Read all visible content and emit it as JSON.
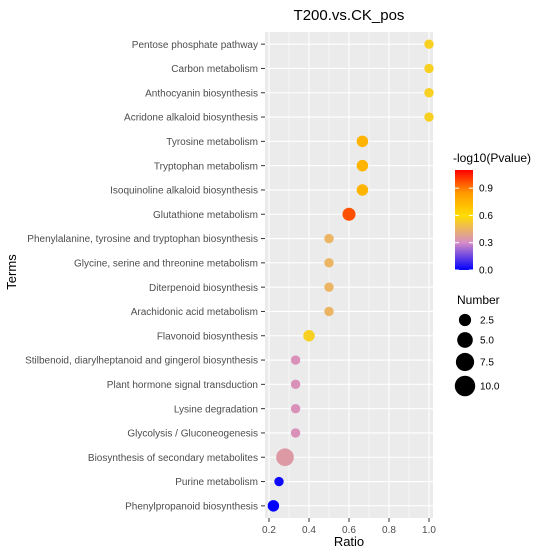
{
  "chart_data": {
    "type": "scatter",
    "title": "T200.vs.CK_pos",
    "xlabel": "Ratio",
    "ylabel": "Terms",
    "xlim": [
      0.18,
      1.02
    ],
    "xticks": [
      "0.2",
      "0.4",
      "0.6",
      "0.8",
      "1.0"
    ],
    "grid": true,
    "terms": [
      {
        "term": "Pentose phosphate pathway",
        "ratio": 1.0,
        "number": 1,
        "pvalue_log": 0.55
      },
      {
        "term": "Carbon metabolism",
        "ratio": 1.0,
        "number": 1,
        "pvalue_log": 0.55
      },
      {
        "term": "Anthocyanin biosynthesis",
        "ratio": 1.0,
        "number": 1,
        "pvalue_log": 0.55
      },
      {
        "term": "Acridone alkaloid biosynthesis",
        "ratio": 1.0,
        "number": 1,
        "pvalue_log": 0.55
      },
      {
        "term": "Tyrosine metabolism",
        "ratio": 0.667,
        "number": 2,
        "pvalue_log": 0.75
      },
      {
        "term": "Tryptophan metabolism",
        "ratio": 0.667,
        "number": 2,
        "pvalue_log": 0.75
      },
      {
        "term": "Isoquinoline alkaloid biosynthesis",
        "ratio": 0.667,
        "number": 2,
        "pvalue_log": 0.75
      },
      {
        "term": "Glutathione metabolism",
        "ratio": 0.6,
        "number": 3,
        "pvalue_log": 0.97
      },
      {
        "term": "Phenylalanine, tyrosine and tryptophan biosynthesis",
        "ratio": 0.5,
        "number": 1,
        "pvalue_log": 0.45
      },
      {
        "term": "Glycine, serine and threonine metabolism",
        "ratio": 0.5,
        "number": 1,
        "pvalue_log": 0.45
      },
      {
        "term": "Diterpenoid biosynthesis",
        "ratio": 0.5,
        "number": 1,
        "pvalue_log": 0.45
      },
      {
        "term": "Arachidonic acid metabolism",
        "ratio": 0.5,
        "number": 1,
        "pvalue_log": 0.45
      },
      {
        "term": "Flavonoid biosynthesis",
        "ratio": 0.4,
        "number": 2,
        "pvalue_log": 0.55
      },
      {
        "term": "Stilbenoid, diarylheptanoid and gingerol biosynthesis",
        "ratio": 0.333,
        "number": 1,
        "pvalue_log": 0.32
      },
      {
        "term": "Plant hormone signal transduction",
        "ratio": 0.333,
        "number": 1,
        "pvalue_log": 0.32
      },
      {
        "term": "Lysine degradation",
        "ratio": 0.333,
        "number": 1,
        "pvalue_log": 0.32
      },
      {
        "term": "Glycolysis / Gluconeogenesis",
        "ratio": 0.333,
        "number": 1,
        "pvalue_log": 0.32
      },
      {
        "term": "Biosynthesis of secondary metabolites",
        "ratio": 0.28,
        "number": 7,
        "pvalue_log": 0.35
      },
      {
        "term": "Purine metabolism",
        "ratio": 0.25,
        "number": 1,
        "pvalue_log": 0.02
      },
      {
        "term": "Phenylpropanoid biosynthesis",
        "ratio": 0.222,
        "number": 2,
        "pvalue_log": 0.0
      }
    ],
    "color_legend": {
      "title": "-log10(Pvalue)",
      "ticks": [
        "0.0",
        "0.3",
        "0.6",
        "0.9"
      ],
      "range": [
        0.0,
        1.1
      ],
      "colors": [
        "#0000ff",
        "#d68cc6",
        "#ffdd00",
        "#ff9900",
        "#ff0000"
      ]
    },
    "size_legend": {
      "title": "Number",
      "items": [
        {
          "label": "2.5",
          "value": 2.5
        },
        {
          "label": "5.0",
          "value": 5.0
        },
        {
          "label": "7.5",
          "value": 7.5
        },
        {
          "label": "10.0",
          "value": 10.0
        }
      ]
    },
    "panel_background": "#ebebeb",
    "grid_color": "#ffffff"
  }
}
